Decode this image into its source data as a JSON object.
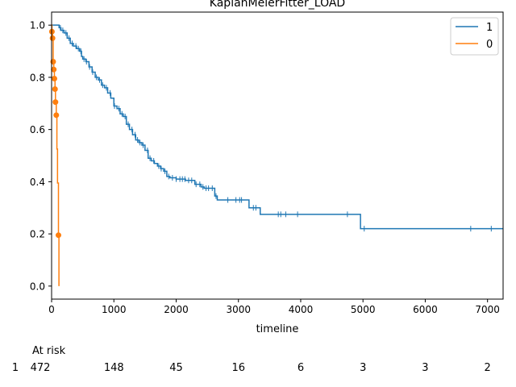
{
  "chart_data": {
    "type": "line",
    "title": "KaplanMeierFitter_LOAD",
    "xlabel": "timeline",
    "ylabel": "",
    "xlim": [
      0,
      7250
    ],
    "ylim": [
      -0.05,
      1.05
    ],
    "xticks": [
      0,
      1000,
      2000,
      3000,
      4000,
      5000,
      6000,
      7000
    ],
    "yticks": [
      0.0,
      0.2,
      0.4,
      0.6,
      0.8,
      1.0
    ],
    "grid": false,
    "legend": "top-right",
    "series": [
      {
        "name": "1",
        "color": "#1f77b4",
        "steps": [
          [
            0,
            1.0
          ],
          [
            120,
            0.99
          ],
          [
            150,
            0.98
          ],
          [
            200,
            0.97
          ],
          [
            250,
            0.95
          ],
          [
            300,
            0.93
          ],
          [
            350,
            0.92
          ],
          [
            400,
            0.91
          ],
          [
            450,
            0.9
          ],
          [
            480,
            0.88
          ],
          [
            500,
            0.87
          ],
          [
            550,
            0.86
          ],
          [
            600,
            0.84
          ],
          [
            650,
            0.82
          ],
          [
            700,
            0.8
          ],
          [
            750,
            0.79
          ],
          [
            800,
            0.77
          ],
          [
            850,
            0.76
          ],
          [
            900,
            0.74
          ],
          [
            950,
            0.72
          ],
          [
            1000,
            0.69
          ],
          [
            1050,
            0.68
          ],
          [
            1100,
            0.66
          ],
          [
            1150,
            0.65
          ],
          [
            1200,
            0.62
          ],
          [
            1250,
            0.6
          ],
          [
            1300,
            0.58
          ],
          [
            1350,
            0.56
          ],
          [
            1400,
            0.55
          ],
          [
            1450,
            0.54
          ],
          [
            1500,
            0.52
          ],
          [
            1550,
            0.49
          ],
          [
            1600,
            0.48
          ],
          [
            1650,
            0.47
          ],
          [
            1700,
            0.46
          ],
          [
            1750,
            0.45
          ],
          [
            1800,
            0.44
          ],
          [
            1850,
            0.42
          ],
          [
            1900,
            0.415
          ],
          [
            2000,
            0.41
          ],
          [
            2150,
            0.405
          ],
          [
            2300,
            0.39
          ],
          [
            2400,
            0.38
          ],
          [
            2450,
            0.375
          ],
          [
            2620,
            0.345
          ],
          [
            2660,
            0.33
          ],
          [
            3170,
            0.3
          ],
          [
            3350,
            0.275
          ],
          [
            4960,
            0.22
          ]
        ],
        "end": 7250,
        "censor": [
          140,
          180,
          230,
          280,
          330,
          390,
          430,
          470,
          520,
          560,
          610,
          660,
          720,
          770,
          820,
          880,
          940,
          1010,
          1080,
          1130,
          1180,
          1230,
          1290,
          1340,
          1380,
          1420,
          1470,
          1540,
          1580,
          1640,
          1720,
          1760,
          1820,
          1880,
          1940,
          2000,
          2060,
          2100,
          2140,
          2200,
          2250,
          2320,
          2380,
          2430,
          2480,
          2520,
          2580,
          2640,
          2830,
          2960,
          3020,
          3050,
          3240,
          3280,
          3640,
          3680,
          3760,
          3950,
          4750,
          5020,
          6730,
          7060
        ]
      },
      {
        "name": "0",
        "color": "#ff7f0e",
        "steps": [
          [
            0,
            1.0
          ],
          [
            5,
            0.975
          ],
          [
            15,
            0.95
          ],
          [
            25,
            0.86
          ],
          [
            35,
            0.83
          ],
          [
            45,
            0.795
          ],
          [
            55,
            0.755
          ],
          [
            62,
            0.705
          ],
          [
            75,
            0.655
          ],
          [
            85,
            0.525
          ],
          [
            95,
            0.395
          ],
          [
            110,
            0.195
          ],
          [
            118,
            0.0
          ]
        ],
        "end": 118,
        "censor_points": [
          [
            5,
            0.975
          ],
          [
            15,
            0.95
          ],
          [
            25,
            0.86
          ],
          [
            35,
            0.83
          ],
          [
            45,
            0.795
          ],
          [
            55,
            0.755
          ],
          [
            62,
            0.705
          ],
          [
            75,
            0.655
          ],
          [
            110,
            0.195
          ]
        ]
      }
    ],
    "at_risk": {
      "label": "At risk",
      "row_label": "1",
      "ticks": [
        0,
        1000,
        2000,
        3000,
        4000,
        5000,
        6000,
        7000
      ],
      "counts": [
        "472",
        "148",
        "45",
        "16",
        "6",
        "3",
        "3",
        "2"
      ]
    }
  }
}
